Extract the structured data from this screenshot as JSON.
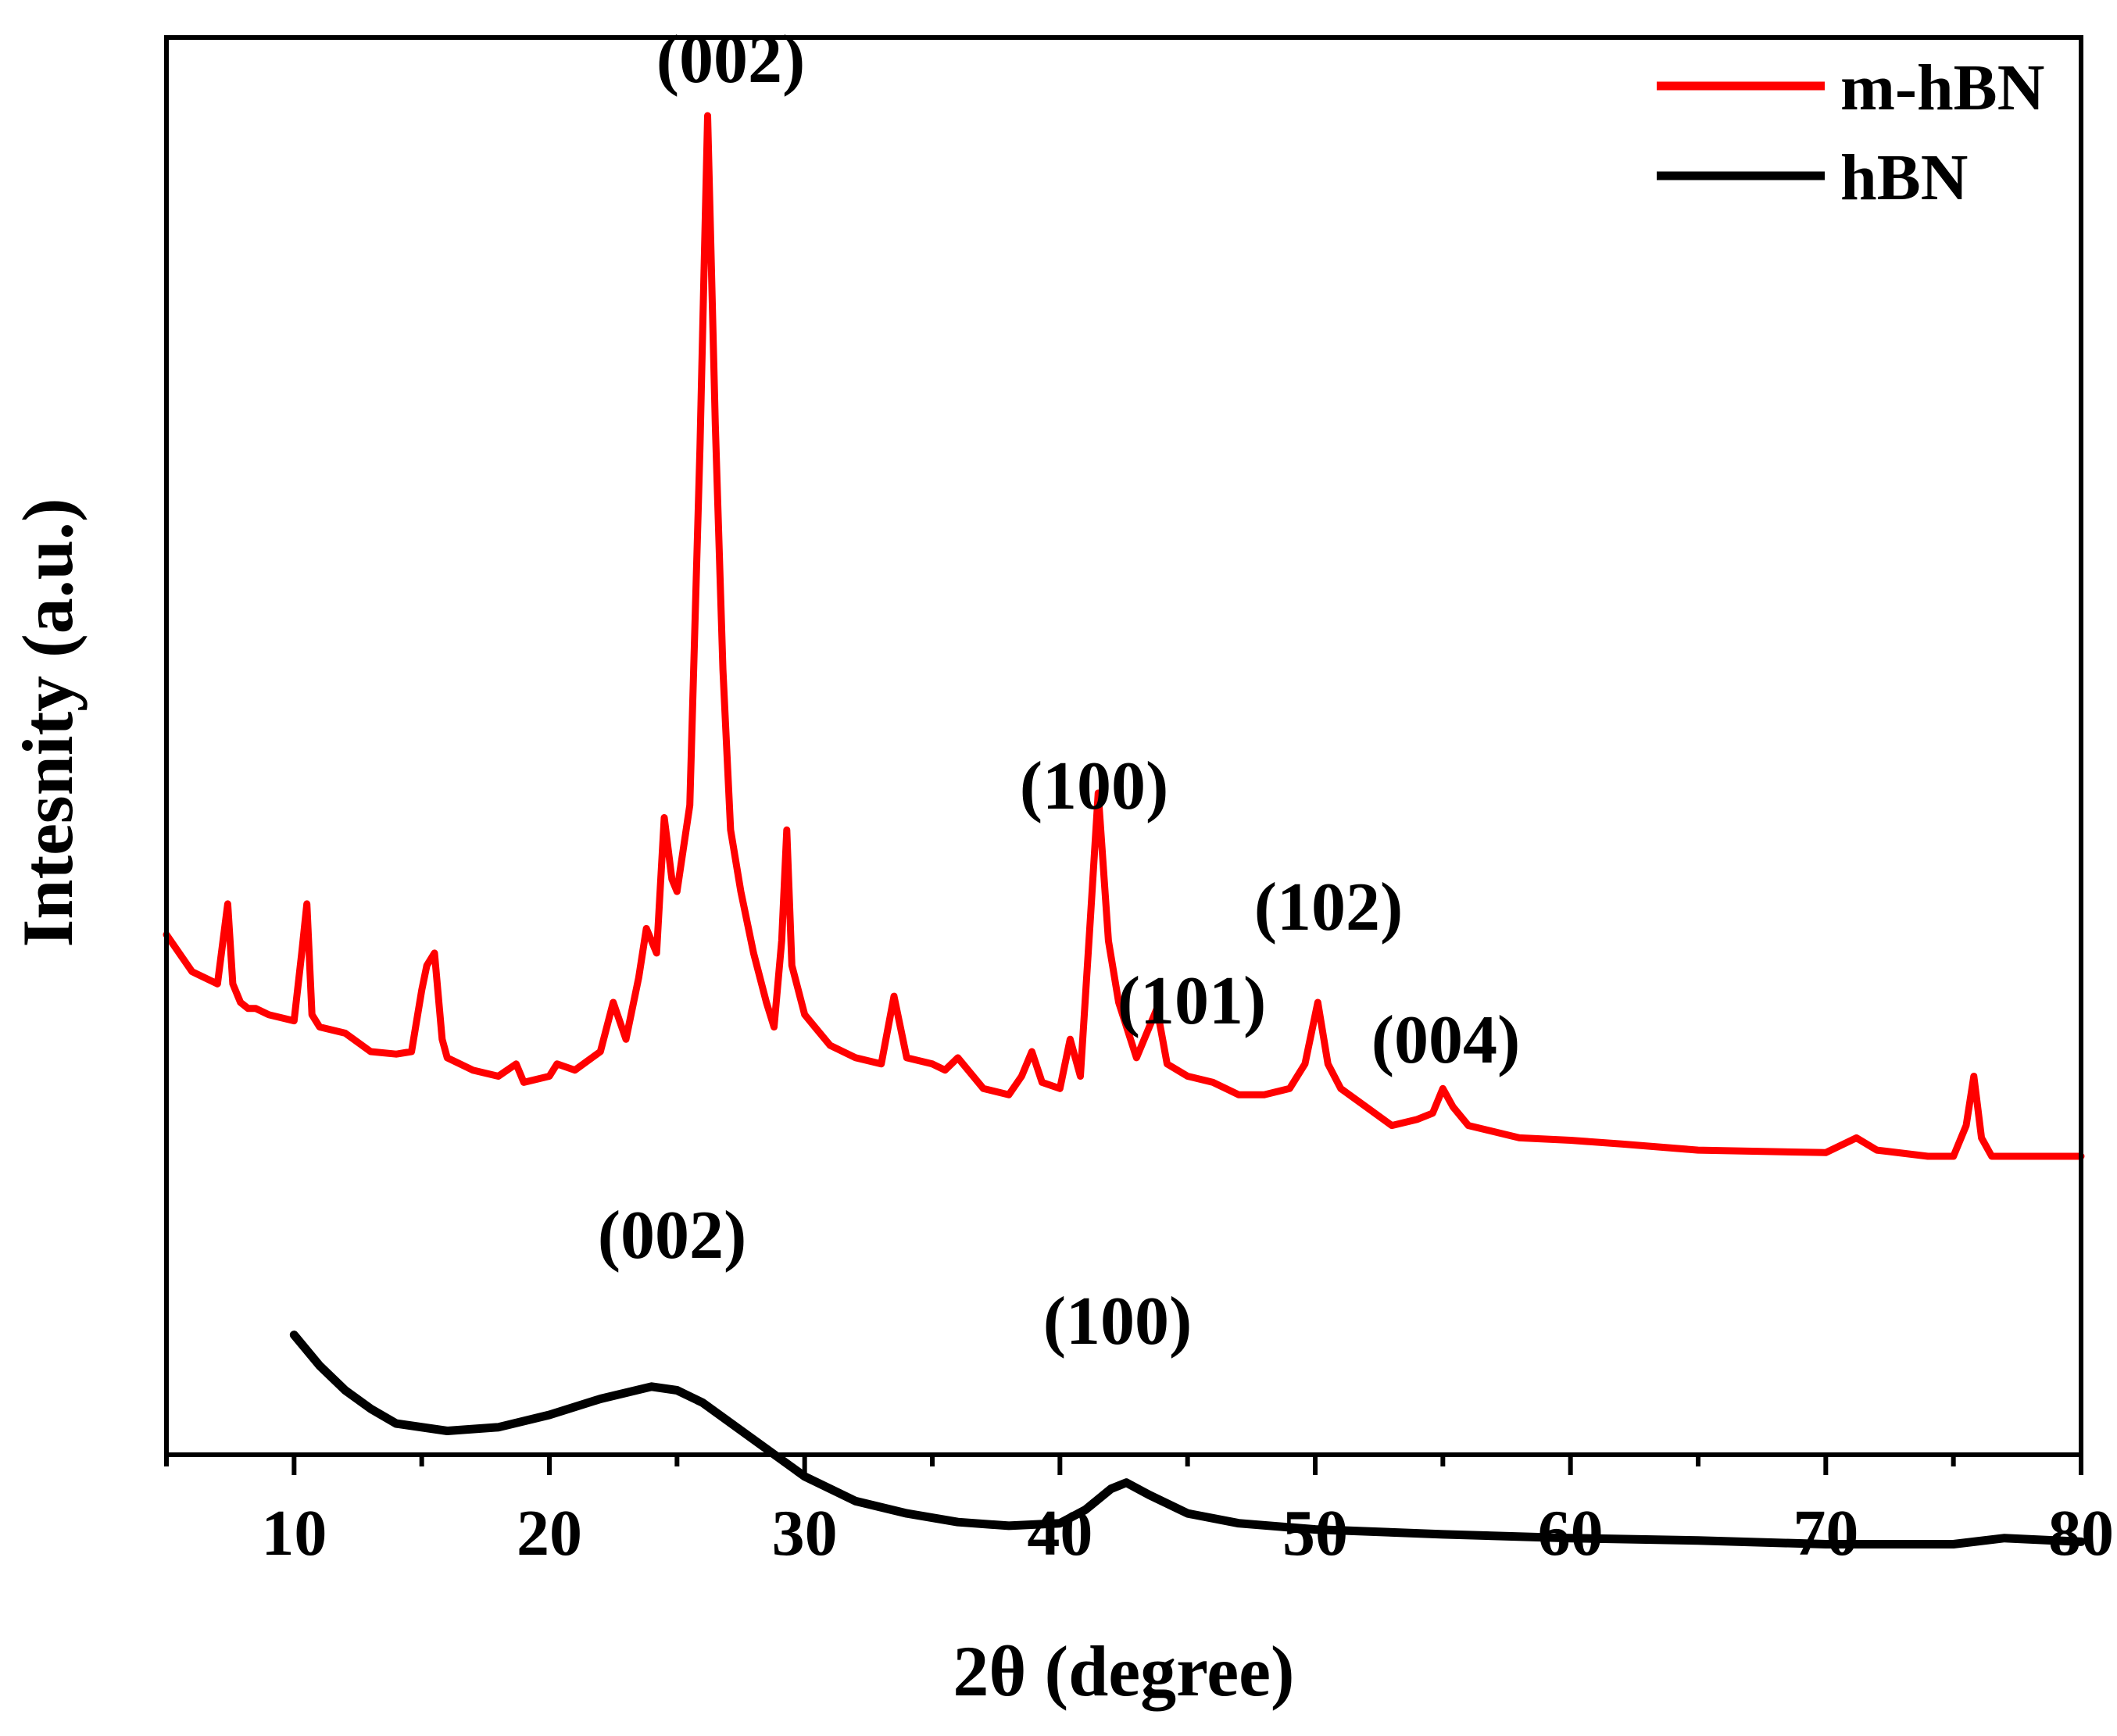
{
  "chart_data": {
    "type": "line",
    "title": "",
    "xlabel": "2θ (degree)",
    "ylabel": "Intesnity (a.u.)",
    "xlim": [
      5,
      80
    ],
    "ylim": [
      0,
      100
    ],
    "xticks": [
      10,
      20,
      30,
      40,
      50,
      60,
      70,
      80
    ],
    "xtick_labels": [
      "10",
      "20",
      "30",
      "40",
      "50",
      "60",
      "70",
      "80"
    ],
    "grid": false,
    "legend_position": "top-right",
    "series": [
      {
        "name": "m-hBN",
        "color": "#ff0000",
        "x": [
          5,
          6,
          7,
          7.4,
          7.6,
          7.9,
          8.2,
          8.5,
          9,
          10,
          10.3,
          10.5,
          10.7,
          11,
          12,
          13,
          14,
          14.6,
          15,
          15.2,
          15.5,
          15.8,
          16,
          16.5,
          17,
          18,
          18.7,
          19,
          20,
          20.3,
          21,
          22,
          22.5,
          23,
          23.5,
          23.8,
          24.2,
          24.5,
          24.8,
          25,
          25.5,
          25.9,
          26.2,
          26.5,
          26.8,
          27.1,
          27.5,
          28,
          28.5,
          28.8,
          29.1,
          29.3,
          29.5,
          30,
          30.4,
          31,
          32,
          33,
          33.5,
          34,
          35,
          35.5,
          36,
          37,
          38,
          38.5,
          38.9,
          39.3,
          40,
          40.4,
          40.8,
          41.2,
          41.5,
          41.9,
          42.3,
          43,
          43.5,
          43.8,
          44.2,
          45,
          46,
          47,
          48,
          49,
          49.6,
          50.1,
          50.5,
          51,
          52,
          53,
          54,
          54.6,
          55,
          55.4,
          56,
          58,
          60,
          62,
          65,
          70,
          71.2,
          72,
          74,
          75,
          75.5,
          75.8,
          76.1,
          76.5,
          77,
          78,
          80
        ],
        "y": [
          28.5,
          25.5,
          24.5,
          31,
          24.5,
          23,
          22.5,
          22.5,
          22,
          21.5,
          27,
          31,
          22,
          21,
          20.5,
          19,
          18.8,
          19,
          24,
          26,
          27,
          20,
          18.5,
          18,
          17.5,
          17,
          18,
          16.5,
          17,
          18,
          17.5,
          19,
          23,
          20,
          25,
          29,
          27,
          38,
          33,
          32,
          39,
          68,
          95,
          70,
          50,
          37,
          32,
          27,
          23,
          21,
          28,
          37,
          26,
          22,
          21,
          19.5,
          18.5,
          18,
          23.5,
          18.5,
          18,
          17.5,
          18.5,
          16,
          15.5,
          17,
          19,
          16.5,
          16,
          20,
          17,
          30,
          40,
          28,
          23,
          18.5,
          21,
          22.5,
          18,
          17,
          16.5,
          15.5,
          15.5,
          16,
          18,
          23,
          18,
          16,
          14.5,
          13,
          13.5,
          14,
          16,
          14.5,
          13,
          12,
          11.8,
          11.5,
          11,
          10.8,
          12,
          11,
          10.5,
          10.5,
          13,
          17,
          12,
          10.5,
          10.5,
          10.5,
          10.5
        ]
      },
      {
        "name": "hBN",
        "color": "#000000",
        "x": [
          10,
          11,
          12,
          13,
          14,
          16,
          18,
          20,
          22,
          24,
          25,
          26,
          28,
          30,
          32,
          34,
          36,
          38,
          40,
          41,
          42,
          42.6,
          43.5,
          45,
          47,
          50,
          55,
          60,
          65,
          70,
          75,
          77,
          80
        ],
        "y": [
          -4,
          -6.5,
          -8.5,
          -10,
          -11.2,
          -11.8,
          -11.5,
          -10.5,
          -9.2,
          -8.2,
          -8.5,
          -9.5,
          -12.5,
          -15.5,
          -17.5,
          -18.5,
          -19.2,
          -19.5,
          -19.3,
          -18.2,
          -16.5,
          -16,
          -17,
          -18.5,
          -19.3,
          -19.8,
          -20.2,
          -20.5,
          -20.7,
          -21,
          -21,
          -20.5,
          -20.8
        ]
      }
    ],
    "annotations": [
      {
        "text": "(002)",
        "series": "m-hBN",
        "x": 26.5
      },
      {
        "text": "(100)",
        "series": "m-hBN",
        "x": 41.5
      },
      {
        "text": "(101)",
        "series": "m-hBN",
        "x": 43.8
      },
      {
        "text": "(102)",
        "series": "m-hBN",
        "x": 50.1
      },
      {
        "text": "(004)",
        "series": "m-hBN",
        "x": 55
      },
      {
        "text": "(002)",
        "series": "hBN",
        "x": 24
      },
      {
        "text": "(100)",
        "series": "hBN",
        "x": 42.6
      }
    ]
  }
}
